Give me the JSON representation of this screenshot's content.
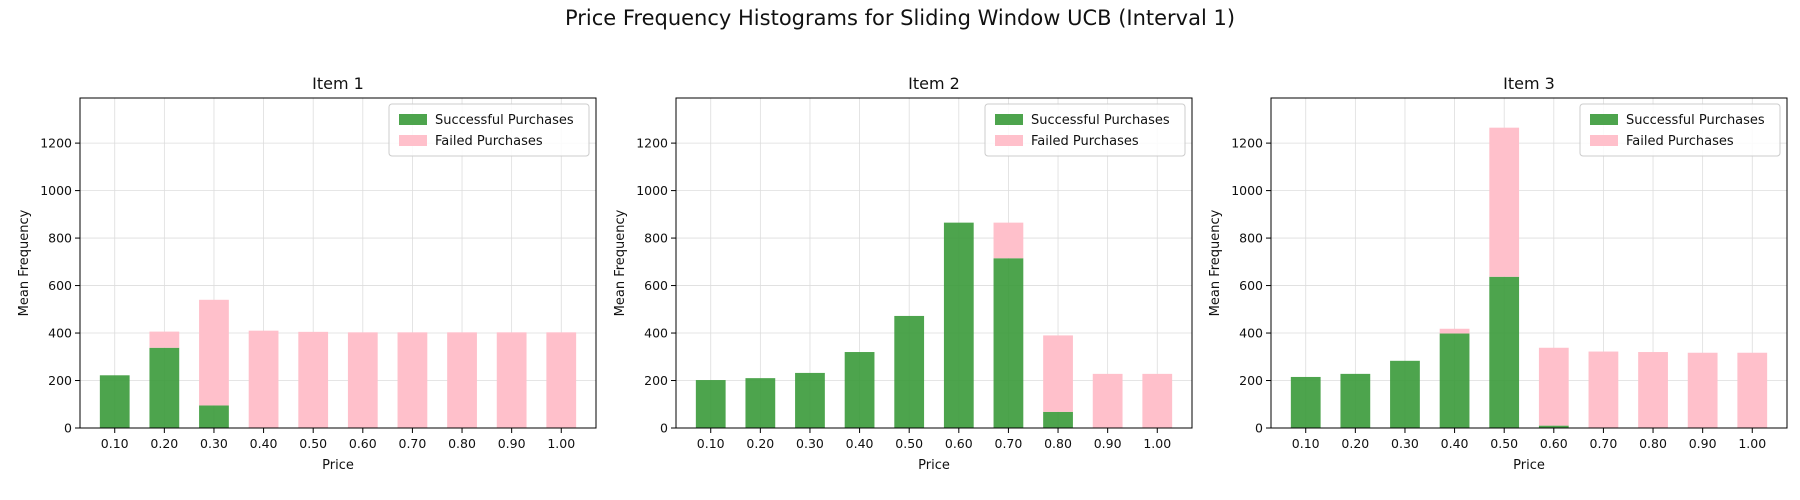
{
  "figure": {
    "title": "Price Frequency Histograms for Sliding Window UCB (Interval 1)"
  },
  "chart_data": [
    {
      "type": "bar",
      "stacked": true,
      "title": "Item 1",
      "xlabel": "Price",
      "ylabel": "Mean Frequency",
      "categories": [
        "0.10",
        "0.20",
        "0.30",
        "0.40",
        "0.50",
        "0.60",
        "0.70",
        "0.80",
        "0.90",
        "1.00"
      ],
      "ylim": [
        0,
        1390
      ],
      "yticks": [
        0,
        200,
        400,
        600,
        800,
        1000,
        1200
      ],
      "grid": true,
      "legend": "top-right",
      "series": [
        {
          "name": "Successful Purchases",
          "color": "#3a9a3a",
          "values": [
            222,
            338,
            95,
            0,
            0,
            0,
            0,
            0,
            0,
            0
          ]
        },
        {
          "name": "Failed Purchases",
          "color": "#ffc0cb",
          "values": [
            0,
            68,
            445,
            410,
            405,
            403,
            403,
            403,
            403,
            403
          ]
        }
      ]
    },
    {
      "type": "bar",
      "stacked": true,
      "title": "Item 2",
      "xlabel": "Price",
      "ylabel": "Mean Frequency",
      "categories": [
        "0.10",
        "0.20",
        "0.30",
        "0.40",
        "0.50",
        "0.60",
        "0.70",
        "0.80",
        "0.90",
        "1.00"
      ],
      "ylim": [
        0,
        1390
      ],
      "yticks": [
        0,
        200,
        400,
        600,
        800,
        1000,
        1200
      ],
      "grid": true,
      "legend": "top-right",
      "series": [
        {
          "name": "Successful Purchases",
          "color": "#3a9a3a",
          "values": [
            202,
            210,
            232,
            320,
            472,
            865,
            715,
            68,
            0,
            0
          ]
        },
        {
          "name": "Failed Purchases",
          "color": "#ffc0cb",
          "values": [
            0,
            0,
            0,
            0,
            0,
            0,
            150,
            322,
            228,
            228
          ]
        }
      ]
    },
    {
      "type": "bar",
      "stacked": true,
      "title": "Item 3",
      "xlabel": "Price",
      "ylabel": "Mean Frequency",
      "categories": [
        "0.10",
        "0.20",
        "0.30",
        "0.40",
        "0.50",
        "0.60",
        "0.70",
        "0.80",
        "0.90",
        "1.00"
      ],
      "ylim": [
        0,
        1390
      ],
      "yticks": [
        0,
        200,
        400,
        600,
        800,
        1000,
        1200
      ],
      "grid": true,
      "legend": "top-right",
      "series": [
        {
          "name": "Successful Purchases",
          "color": "#3a9a3a",
          "values": [
            215,
            228,
            283,
            398,
            637,
            10,
            0,
            0,
            0,
            0
          ]
        },
        {
          "name": "Failed Purchases",
          "color": "#ffc0cb",
          "values": [
            0,
            0,
            0,
            20,
            628,
            328,
            322,
            320,
            317,
            317
          ]
        }
      ]
    }
  ]
}
